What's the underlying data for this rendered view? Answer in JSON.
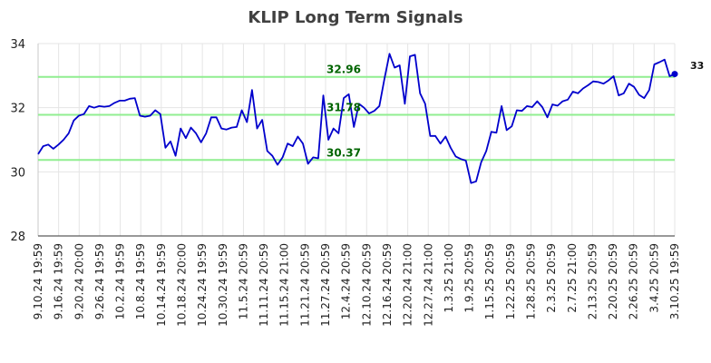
{
  "chart_data": {
    "type": "line",
    "title": "KLIP Long Term Signals",
    "xlabel": "",
    "ylabel": "",
    "ylim": [
      28,
      34
    ],
    "yticks": [
      28,
      30,
      32,
      34
    ],
    "grid": true,
    "colors": {
      "line": "#0000cc",
      "signal": "#90ee90",
      "signal_text": "#006400",
      "grid": "#e5e5e5"
    },
    "x_tick_labels": [
      "9.10.24 19:59",
      "9.16.24 19:59",
      "9.20.24 20:00",
      "9.26.24 19:59",
      "10.2.24 19:59",
      "10.8.24 19:59",
      "10.14.24 19:59",
      "10.18.24 20:00",
      "10.24.24 19:59",
      "10.30.24 19:59",
      "11.5.24 20:59",
      "11.11.24 20:59",
      "11.15.24 21:00",
      "11.21.24 20:59",
      "11.27.24 20:59",
      "12.4.24 20:59",
      "12.10.24 20:59",
      "12.16.24 20:59",
      "12.20.24 21:00",
      "12.27.24 21:00",
      "1.3.25 21:00",
      "1.9.25 20:59",
      "1.15.25 20:59",
      "1.22.25 20:59",
      "1.28.25 20:59",
      "2.3.25 20:59",
      "2.7.25 21:00",
      "2.13.25 20:59",
      "2.20.25 20:59",
      "2.26.25 20:59",
      "3.4.25 20:59",
      "3.10.25 19:59"
    ],
    "signals": [
      {
        "label": "32.96",
        "value": 32.96
      },
      {
        "label": "31.78",
        "value": 31.78
      },
      {
        "label": "30.37",
        "value": 30.37
      }
    ],
    "last_value_label": "33",
    "series": [
      {
        "name": "KLIP",
        "values": [
          30.55,
          30.8,
          30.85,
          30.72,
          30.85,
          31.0,
          31.2,
          31.6,
          31.75,
          31.8,
          32.05,
          32.0,
          32.05,
          32.03,
          32.05,
          32.15,
          32.22,
          32.22,
          32.28,
          32.3,
          31.75,
          31.72,
          31.75,
          31.92,
          31.8,
          30.75,
          30.95,
          30.5,
          31.35,
          31.05,
          31.38,
          31.2,
          30.92,
          31.2,
          31.7,
          31.7,
          31.35,
          31.32,
          31.38,
          31.4,
          31.92,
          31.55,
          32.55,
          31.35,
          31.62,
          30.65,
          30.5,
          30.22,
          30.45,
          30.88,
          30.8,
          31.1,
          30.88,
          30.25,
          30.45,
          30.42,
          32.38,
          31.0,
          31.35,
          31.2,
          32.3,
          32.42,
          31.4,
          32.12,
          32.0,
          31.82,
          31.9,
          32.05,
          32.9,
          33.68,
          33.25,
          33.32,
          32.12,
          33.6,
          33.65,
          32.45,
          32.12,
          31.12,
          31.12,
          30.88,
          31.1,
          30.75,
          30.48,
          30.4,
          30.35,
          29.65,
          29.7,
          30.3,
          30.65,
          31.25,
          31.22,
          32.05,
          31.3,
          31.42,
          31.92,
          31.9,
          32.05,
          32.02,
          32.2,
          32.02,
          31.7,
          32.1,
          32.06,
          32.2,
          32.25,
          32.5,
          32.45,
          32.6,
          32.7,
          32.82,
          32.8,
          32.75,
          32.85,
          32.98,
          32.38,
          32.45,
          32.75,
          32.65,
          32.4,
          32.3,
          32.55,
          33.35,
          33.42,
          33.5,
          32.98,
          33.05
        ]
      }
    ]
  }
}
